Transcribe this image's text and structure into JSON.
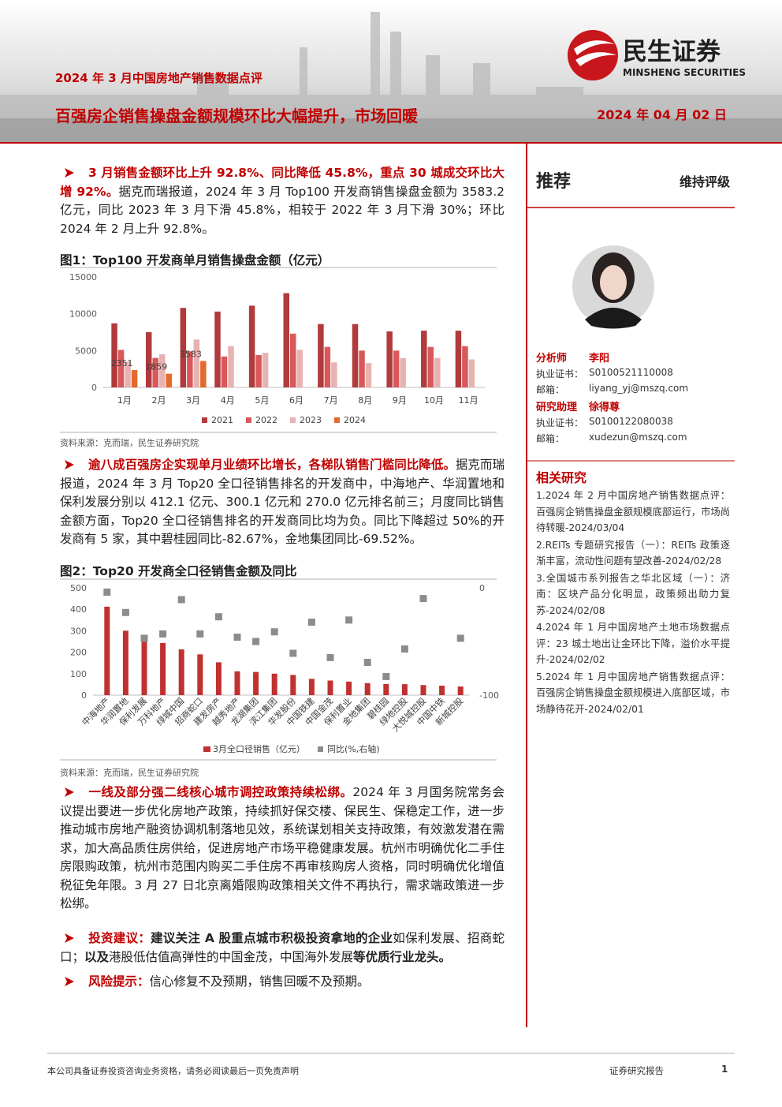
{
  "header": {
    "subtitle": "2024 年 3 月中国房地产销售数据点评",
    "title": "百强房企销售操盘金额规模环比大幅提升，市场回暖",
    "date": "2024 年 04 月 02 日",
    "logo_cn": "民生证券",
    "logo_en": "MINSHENG SECURITIES"
  },
  "body": {
    "paragraphs": [
      {
        "runs": [
          {
            "text": "3 月销售金额环比上升 92.8%、同比降低 45.8%，重点 30 城成交环比大增 92%。",
            "style": "lead"
          },
          {
            "text": "据克而瑞报道，2024 年 3 月 Top100 开发商销售操盘金额为 3583.2 亿元，同比 2023 年 3 月下滑 45.8%，相较于 2022 年 3 月下滑 30%；环比 2024 年 2 月上升 92.8%。",
            "style": "normal"
          }
        ]
      },
      {
        "runs": [
          {
            "text": "逾八成百强房企实现单月业绩环比增长，各梯队销售门槛同比降低。",
            "style": "lead"
          },
          {
            "text": "据克而瑞报道，2024 年 3 月 Top20 全口径销售排名的开发商中，中海地产、华润置地和保利发展分别以 412.1 亿元、300.1 亿元和 270.0 亿元排名前三；月度同比销售金额方面，Top20 全口径销售排名的开发商同比均为负。同比下降超过 50%的开发商有 5 家，其中碧桂园同比-82.67%，金地集团同比-69.52%。",
            "style": "normal"
          }
        ]
      },
      {
        "runs": [
          {
            "text": "一线及部分强二线核心城市调控政策持续松绑。",
            "style": "lead"
          },
          {
            "text": "2024 年 3 月国务院常务会议提出要进一步优化房地产政策，持续抓好保交楼、保民生、保稳定工作，进一步推动城市房地产融资协调机制落地见效，系统谋划相关支持政策，有效激发潜在需求，加大高品质住房供给，促进房地产市场平稳健康发展。杭州市明确优化二手住房限购政策，杭州市范围内购买二手住房不再审核购房人资格，同时明确优化增值税征免年限。3 月 27 日北京离婚限购政策相关文件不再执行，需求端政策进一步松绑。",
            "style": "normal"
          }
        ]
      },
      {
        "runs": [
          {
            "text": "投资建议：",
            "style": "lead"
          },
          {
            "text": "建议关注 A 股重点城市积极投资拿地的企业",
            "style": "bold"
          },
          {
            "text": "如保利发展、招商蛇口；",
            "style": "normal"
          },
          {
            "text": "以及",
            "style": "bold"
          },
          {
            "text": "港股低估值高弹性的中国金茂，中国海外发展",
            "style": "normal"
          },
          {
            "text": "等优质行业龙头。",
            "style": "bold"
          }
        ]
      },
      {
        "runs": [
          {
            "text": "风险提示：",
            "style": "lead"
          },
          {
            "text": "信心修复不及预期，销售回暖不及预期。",
            "style": "normal"
          }
        ]
      }
    ]
  },
  "chart_data": [
    {
      "type": "bar",
      "title": "图1：Top100 开发商单月销售操盘金额（亿元）",
      "source": "资料来源：克而瑞，民生证券研究院",
      "categories": [
        "1月",
        "2月",
        "3月",
        "4月",
        "5月",
        "6月",
        "7月",
        "8月",
        "9月",
        "10月",
        "11月"
      ],
      "series": [
        {
          "name": "2021",
          "color": "#b03a3c",
          "values": [
            8700,
            7500,
            10800,
            10300,
            11100,
            12800,
            8600,
            8600,
            7600,
            7700,
            7700
          ]
        },
        {
          "name": "2022",
          "color": "#d9585a",
          "values": [
            5100,
            4000,
            4900,
            4200,
            4400,
            7300,
            5500,
            5000,
            5000,
            5500,
            5600
          ]
        },
        {
          "name": "2023",
          "color": "#e8b2b2",
          "values": [
            3500,
            4500,
            6500,
            5600,
            4700,
            5100,
            3400,
            3300,
            4000,
            4000,
            3800
          ]
        },
        {
          "name": "2024",
          "color": "#e4692a",
          "values": [
            2351,
            1859,
            3583,
            null,
            null,
            null,
            null,
            null,
            null,
            null,
            null
          ],
          "data_labels": true
        }
      ],
      "ylim": [
        0,
        15000
      ],
      "yticks": [
        0,
        5000,
        10000,
        15000
      ],
      "grid": false
    },
    {
      "type": "bar",
      "title": "图2：Top20 开发商全口径销售金额及同比",
      "source": "资料来源：克而瑞，民生证券研究院",
      "categories": [
        "中海地产",
        "华润置地",
        "保利发展",
        "万科地产",
        "绿城中国",
        "招商蛇口",
        "建发房产",
        "越秀地产",
        "龙湖集团",
        "滨江集团",
        "华发股份",
        "中国铁建",
        "中国金茂",
        "保利置业",
        "金地集团",
        "碧桂园",
        "绿地控股",
        "大悦城控股",
        "中国中铁",
        "新城控股"
      ],
      "series": [
        {
          "name": "3月全口径销售（亿元）",
          "color": "#c0312f",
          "values": [
            412.1,
            300.1,
            270.0,
            243,
            213,
            190,
            153,
            111,
            108,
            100,
            94,
            76,
            68,
            63,
            56,
            52,
            51,
            47,
            44,
            40
          ]
        },
        {
          "name": "同比(%,右轴)",
          "color": "#8c8c8c",
          "axis": "y2",
          "marker": "square",
          "values": [
            -4,
            -23,
            -47,
            -43,
            -11,
            -43,
            -27,
            -46,
            -50,
            -41,
            -61,
            -32,
            -65,
            -30,
            -69.52,
            -82.67,
            -57,
            -10,
            null,
            -47
          ]
        }
      ],
      "ylim": [
        0,
        500
      ],
      "yticks": [
        0,
        100,
        200,
        300,
        400,
        500
      ],
      "y2lim": [
        -100,
        0
      ],
      "y2ticks": [
        0,
        -100
      ],
      "grid": false
    }
  ],
  "sidebar": {
    "rating": "推荐",
    "rating_note": "维持评级",
    "analysts": [
      {
        "role": "分析师",
        "name": "李阳",
        "cert_label": "执业证书：",
        "cert": "S0100521110008",
        "email_label": "邮箱：",
        "email": "liyang_yj@mszq.com"
      },
      {
        "role": "研究助理",
        "name": "徐得尊",
        "cert_label": "执业证书：",
        "cert": "S0100122080038",
        "email_label": "邮箱：",
        "email": "xudezun@mszq.com"
      }
    ],
    "related_title": "相关研究",
    "related": [
      "1.2024 年 2 月中国房地产销售数据点评：百强房企销售操盘金额规模底部运行，市场尚待转暖-2024/03/04",
      "2.REITs 专题研究报告（一）：REITs 政策逐渐丰富，流动性问题有望改善-2024/02/28",
      "3.全国城市系列报告之华北区域（一）：济南：区块产品分化明显，政策频出助力复苏-2024/02/08",
      "4.2024 年 1 月中国房地产土地市场数据点评：23 城土地出让金环比下降，溢价水平提升-2024/02/02",
      "5.2024 年 1 月中国房地产销售数据点评：百强房企销售操盘金额规模进入底部区域，市场静待花开-2024/02/01"
    ]
  },
  "footer": {
    "disclaimer": "本公司具备证券投资咨询业务资格，请务必阅读最后一页免责声明",
    "type": "证券研究报告",
    "page": 1
  }
}
